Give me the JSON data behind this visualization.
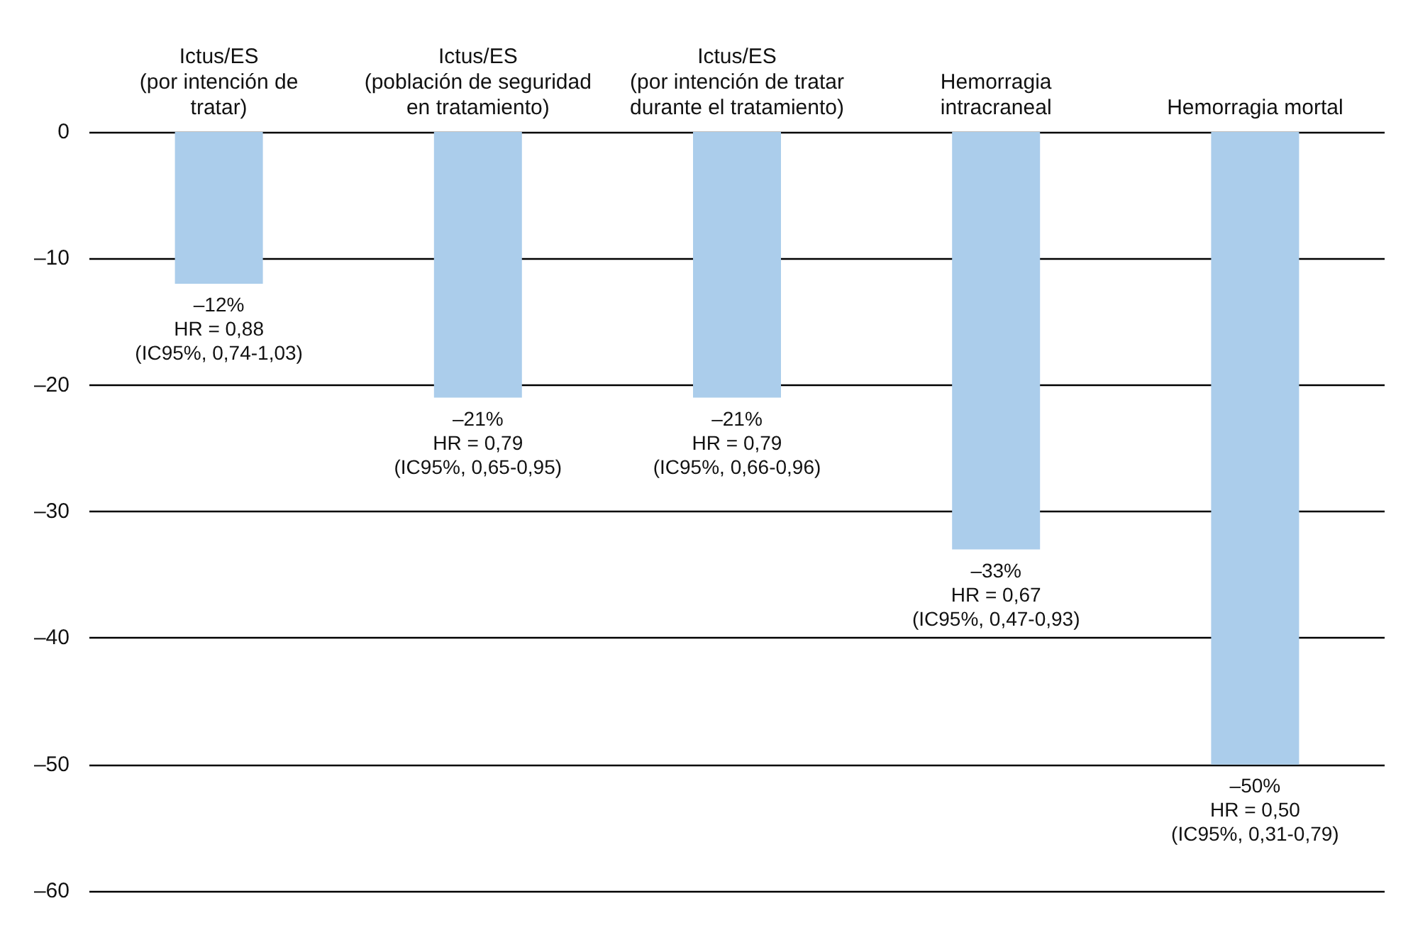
{
  "chart_data": {
    "type": "bar",
    "categories": [
      "Ictus/ES\n(por intención de\ntratar)",
      "Ictus/ES\n(población de seguridad\nen tratamiento)",
      "Ictus/ES\n(por intención de tratar\ndurante el tratamiento)",
      "Hemorragia\nintracraneal",
      "Hemorragia mortal"
    ],
    "values": [
      -12,
      -21,
      -21,
      -33,
      -50
    ],
    "color": "#abcdeb",
    "value_labels": [
      "–12%\nHR = 0,88\n(IC95%, 0,74-1,03)",
      "–21%\nHR = 0,79\n(IC95%, 0,65-0,95)",
      "–21%\nHR = 0,79\n(IC95%, 0,66-0,96)",
      "–33%\nHR = 0,67\n(IC95%, 0,47-0,93)",
      "–50%\nHR = 0,50\n(IC95%, 0,31-0,79)"
    ],
    "ylim": [
      -60,
      0
    ],
    "yticks": [
      {
        "value": 0,
        "label": "0"
      },
      {
        "value": -10,
        "label": "–10"
      },
      {
        "value": -20,
        "label": "–20"
      },
      {
        "value": -30,
        "label": "–30"
      },
      {
        "value": -40,
        "label": "–40"
      },
      {
        "value": -50,
        "label": "–50"
      },
      {
        "value": -60,
        "label": "–60"
      }
    ],
    "grid": "y"
  }
}
